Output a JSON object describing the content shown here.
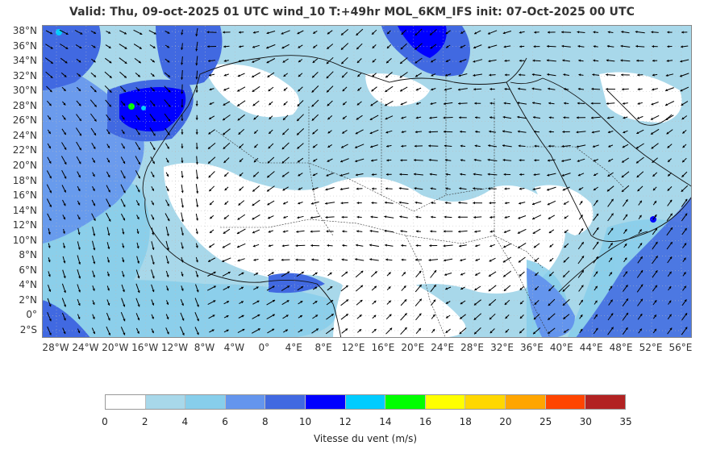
{
  "title": "Valid: Thu, 09-oct-2025   01 UTC   wind_10   T:+49hr   MOL_6KM_IFS   init: 07-Oct-2025    00 UTC",
  "map": {
    "region": "North Africa / Arabia",
    "lat_labels": [
      "38°N",
      "36°N",
      "34°N",
      "32°N",
      "30°N",
      "28°N",
      "26°N",
      "24°N",
      "22°N",
      "20°N",
      "18°N",
      "16°N",
      "14°N",
      "12°N",
      "10°N",
      "8°N",
      "6°N",
      "4°N",
      "2°N",
      "0°",
      "2°S"
    ],
    "lon_labels": [
      "28°W",
      "24°W",
      "20°W",
      "16°W",
      "12°W",
      "8°W",
      "4°W",
      "0°",
      "4°E",
      "8°E",
      "12°E",
      "16°E",
      "20°E",
      "24°E",
      "28°E",
      "32°E",
      "36°E",
      "40°E",
      "44°E",
      "48°E",
      "52°E",
      "56°E"
    ]
  },
  "colorbar": {
    "label": "Vitesse du vent (m/s)",
    "ticks": [
      "0",
      "2",
      "4",
      "6",
      "8",
      "10",
      "12",
      "14",
      "16",
      "18",
      "20",
      "25",
      "30",
      "35"
    ],
    "colors": [
      "#ffffff",
      "#a8d8ea",
      "#87ceeb",
      "#6495ed",
      "#4169e1",
      "#0000ff",
      "#00ccff",
      "#00ff00",
      "#ffff00",
      "#ffd700",
      "#ffa500",
      "#ff4500",
      "#b22222"
    ]
  }
}
